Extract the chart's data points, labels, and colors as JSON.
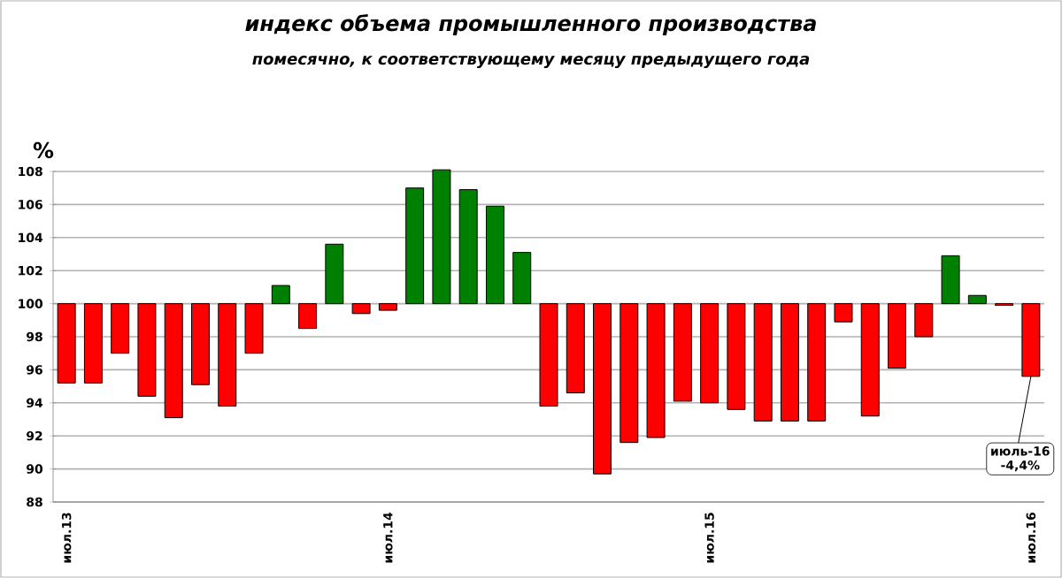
{
  "chart_data": {
    "type": "bar",
    "title": "индекс объема промышленного производства",
    "subtitle": "помесячно, к соответствующему месяцу предыдущего года",
    "ylabel": "%",
    "categories": [
      "июл.13",
      null,
      null,
      null,
      null,
      null,
      null,
      null,
      null,
      null,
      null,
      null,
      "июл.14",
      null,
      null,
      null,
      null,
      null,
      null,
      null,
      null,
      null,
      null,
      null,
      "июл.15",
      null,
      null,
      null,
      null,
      null,
      null,
      null,
      null,
      null,
      null,
      null,
      "июл.16"
    ],
    "base": [
      100,
      100,
      100,
      100,
      100,
      100,
      100,
      100,
      100,
      100,
      100,
      100,
      100,
      100,
      100,
      100,
      100,
      100,
      100,
      100,
      100,
      100,
      100,
      100,
      100,
      100,
      100,
      100,
      100,
      100,
      100,
      100,
      100,
      100,
      100,
      100,
      100
    ],
    "values": [
      -4.8,
      -4.8,
      -3.0,
      -5.6,
      -6.9,
      -4.9,
      -6.2,
      -3.0,
      1.1,
      -1.5,
      3.6,
      -0.6,
      -0.4,
      7.0,
      8.1,
      6.9,
      5.9,
      3.1,
      -6.2,
      -5.4,
      -10.3,
      -8.4,
      -8.1,
      -5.9,
      -6.0,
      -6.4,
      -7.1,
      -7.1,
      -7.1,
      -1.1,
      -6.8,
      -3.9,
      -2.0,
      2.9,
      0.5,
      -0.1,
      -4.4
    ],
    "colors": [
      "#ff0000",
      "#ff0000",
      "#ff0000",
      "#ff0000",
      "#ff0000",
      "#ff0000",
      "#ff0000",
      "#ff0000",
      "#008000",
      "#ff0000",
      "#008000",
      "#ff0000",
      "#ff0000",
      "#008000",
      "#008000",
      "#008000",
      "#008000",
      "#008000",
      "#ff0000",
      "#ff0000",
      "#ff0000",
      "#ff0000",
      "#ff0000",
      "#ff0000",
      "#ff0000",
      "#ff0000",
      "#ff0000",
      "#ff0000",
      "#ff0000",
      "#ff0000",
      "#ff0000",
      "#ff0000",
      "#ff0000",
      "#008000",
      "#008000",
      "#ff0000",
      "#ff0000"
    ],
    "ylim": [
      88,
      108
    ],
    "yticks": [
      88,
      90,
      92,
      94,
      96,
      98,
      100,
      102,
      104,
      106,
      108
    ],
    "grid": "y",
    "annotations": [
      {
        "text": "июль-16 -4,4%",
        "x": "июл.16",
        "y": 95.6
      }
    ]
  }
}
